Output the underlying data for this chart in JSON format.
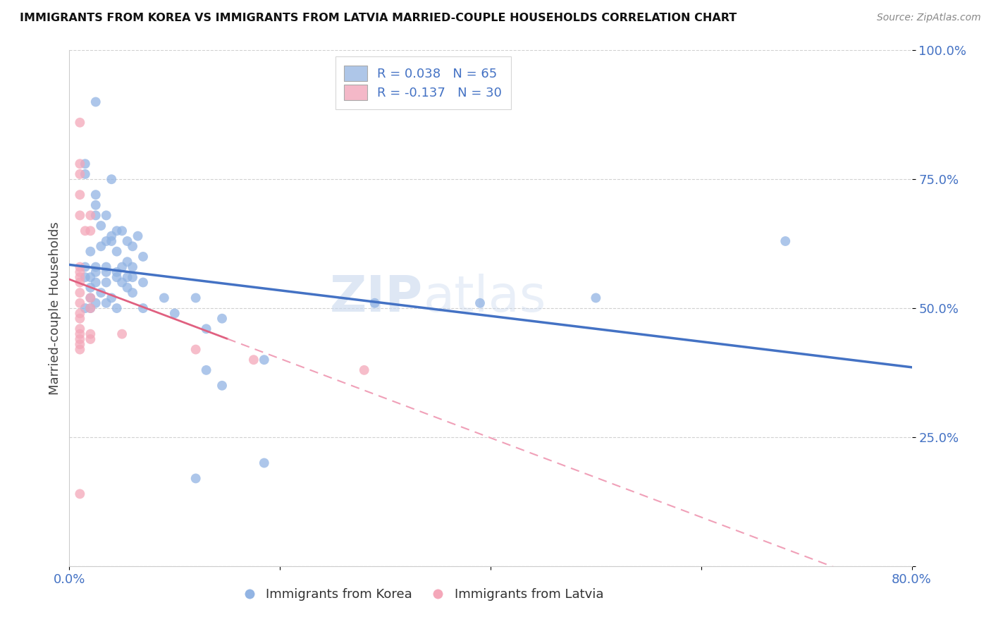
{
  "title": "IMMIGRANTS FROM KOREA VS IMMIGRANTS FROM LATVIA MARRIED-COUPLE HOUSEHOLDS CORRELATION CHART",
  "source": "Source: ZipAtlas.com",
  "ylabel": "Married-couple Households",
  "xlim": [
    0.0,
    0.8
  ],
  "ylim": [
    0.0,
    1.0
  ],
  "korea_color": "#92b4e3",
  "latvia_color": "#f4a7b9",
  "korea_line_color": "#4472c4",
  "latvia_line_solid_color": "#e06080",
  "latvia_line_dash_color": "#f0a0b8",
  "legend_korea_color": "#aec6e8",
  "legend_latvia_color": "#f4b8c8",
  "text_color": "#4472c4",
  "watermark_text": "ZIPatlas",
  "watermark_color": "#c8d8ee",
  "background_color": "#ffffff",
  "grid_color": "#cccccc",
  "legend1_label": "R = 0.038   N = 65",
  "legend2_label": "R = -0.137   N = 30",
  "korea_points": [
    [
      0.025,
      0.9
    ],
    [
      0.015,
      0.78
    ],
    [
      0.015,
      0.76
    ],
    [
      0.025,
      0.72
    ],
    [
      0.025,
      0.7
    ],
    [
      0.025,
      0.68
    ],
    [
      0.035,
      0.68
    ],
    [
      0.04,
      0.75
    ],
    [
      0.03,
      0.66
    ],
    [
      0.045,
      0.65
    ],
    [
      0.04,
      0.64
    ],
    [
      0.035,
      0.63
    ],
    [
      0.05,
      0.65
    ],
    [
      0.065,
      0.64
    ],
    [
      0.04,
      0.63
    ],
    [
      0.055,
      0.63
    ],
    [
      0.03,
      0.62
    ],
    [
      0.06,
      0.62
    ],
    [
      0.02,
      0.61
    ],
    [
      0.045,
      0.61
    ],
    [
      0.07,
      0.6
    ],
    [
      0.055,
      0.59
    ],
    [
      0.015,
      0.58
    ],
    [
      0.025,
      0.58
    ],
    [
      0.035,
      0.58
    ],
    [
      0.05,
      0.58
    ],
    [
      0.06,
      0.58
    ],
    [
      0.035,
      0.57
    ],
    [
      0.045,
      0.57
    ],
    [
      0.025,
      0.57
    ],
    [
      0.015,
      0.56
    ],
    [
      0.02,
      0.56
    ],
    [
      0.06,
      0.56
    ],
    [
      0.045,
      0.56
    ],
    [
      0.055,
      0.56
    ],
    [
      0.025,
      0.55
    ],
    [
      0.035,
      0.55
    ],
    [
      0.05,
      0.55
    ],
    [
      0.07,
      0.55
    ],
    [
      0.02,
      0.54
    ],
    [
      0.055,
      0.54
    ],
    [
      0.03,
      0.53
    ],
    [
      0.06,
      0.53
    ],
    [
      0.02,
      0.52
    ],
    [
      0.04,
      0.52
    ],
    [
      0.09,
      0.52
    ],
    [
      0.12,
      0.52
    ],
    [
      0.025,
      0.51
    ],
    [
      0.035,
      0.51
    ],
    [
      0.29,
      0.51
    ],
    [
      0.39,
      0.51
    ],
    [
      0.5,
      0.52
    ],
    [
      0.015,
      0.5
    ],
    [
      0.02,
      0.5
    ],
    [
      0.045,
      0.5
    ],
    [
      0.07,
      0.5
    ],
    [
      0.1,
      0.49
    ],
    [
      0.145,
      0.48
    ],
    [
      0.13,
      0.46
    ],
    [
      0.185,
      0.4
    ],
    [
      0.13,
      0.38
    ],
    [
      0.145,
      0.35
    ],
    [
      0.185,
      0.2
    ],
    [
      0.12,
      0.17
    ],
    [
      0.68,
      0.63
    ]
  ],
  "latvia_points": [
    [
      0.01,
      0.86
    ],
    [
      0.01,
      0.78
    ],
    [
      0.01,
      0.76
    ],
    [
      0.01,
      0.72
    ],
    [
      0.01,
      0.68
    ],
    [
      0.02,
      0.68
    ],
    [
      0.015,
      0.65
    ],
    [
      0.02,
      0.65
    ],
    [
      0.01,
      0.58
    ],
    [
      0.01,
      0.57
    ],
    [
      0.01,
      0.56
    ],
    [
      0.01,
      0.55
    ],
    [
      0.01,
      0.53
    ],
    [
      0.02,
      0.52
    ],
    [
      0.01,
      0.51
    ],
    [
      0.02,
      0.5
    ],
    [
      0.01,
      0.49
    ],
    [
      0.01,
      0.48
    ],
    [
      0.01,
      0.46
    ],
    [
      0.01,
      0.45
    ],
    [
      0.02,
      0.45
    ],
    [
      0.01,
      0.44
    ],
    [
      0.02,
      0.44
    ],
    [
      0.01,
      0.43
    ],
    [
      0.01,
      0.42
    ],
    [
      0.05,
      0.45
    ],
    [
      0.12,
      0.42
    ],
    [
      0.175,
      0.4
    ],
    [
      0.28,
      0.38
    ],
    [
      0.01,
      0.14
    ]
  ]
}
